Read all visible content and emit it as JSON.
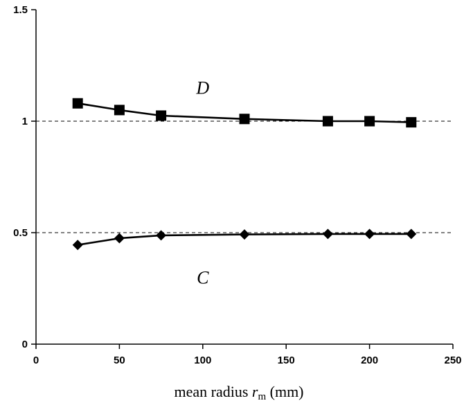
{
  "chart_data": {
    "type": "line",
    "xlabel": {
      "prefix": "mean radius ",
      "var": "r",
      "sub": "m",
      "suffix": " (mm)"
    },
    "ylabel": "",
    "xlim": [
      0,
      250
    ],
    "ylim": [
      0,
      1.5
    ],
    "xticks": [
      0,
      50,
      100,
      150,
      200,
      250
    ],
    "yticks": [
      0,
      0.5,
      1,
      1.5
    ],
    "ytick_labels": [
      "0",
      "0.5",
      "1",
      "1.5"
    ],
    "reference_lines": [
      0.5,
      1
    ],
    "grid": false,
    "series": [
      {
        "name": "D",
        "marker": "square",
        "color": "#000000",
        "x": [
          25,
          50,
          75,
          125,
          175,
          200,
          225
        ],
        "y": [
          1.08,
          1.05,
          1.025,
          1.01,
          1.0,
          1.0,
          0.995
        ],
        "label_at": [
          100,
          1.15
        ]
      },
      {
        "name": "C",
        "marker": "diamond",
        "color": "#000000",
        "x": [
          25,
          50,
          75,
          125,
          175,
          200,
          225
        ],
        "y": [
          0.445,
          0.475,
          0.488,
          0.492,
          0.494,
          0.494,
          0.494
        ],
        "label_at": [
          100,
          0.3
        ]
      }
    ]
  }
}
